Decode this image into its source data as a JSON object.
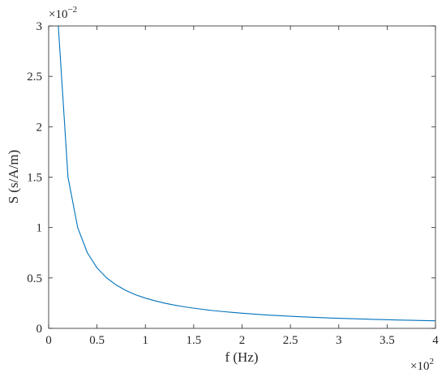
{
  "chart_data": {
    "type": "line",
    "title": "",
    "xlabel": "f (Hz)",
    "ylabel": "S (s/A/m)",
    "x_exponent_label": {
      "base": "×10",
      "power": "2"
    },
    "y_exponent_label": {
      "base": "×10",
      "power": "−2"
    },
    "xlim": [
      0,
      4
    ],
    "ylim": [
      0,
      3
    ],
    "x_ticks": [
      0,
      0.5,
      1,
      1.5,
      2,
      2.5,
      3,
      3.5,
      4
    ],
    "x_tick_labels": [
      "0",
      "0.5",
      "1",
      "1.5",
      "2",
      "2.5",
      "3",
      "3.5",
      "4"
    ],
    "y_ticks": [
      0,
      0.5,
      1,
      1.5,
      2,
      2.5,
      3
    ],
    "y_tick_labels": [
      "0",
      "0.5",
      "1",
      "1.5",
      "2",
      "2.5",
      "3"
    ],
    "grid": false,
    "series": [
      {
        "color": "#0072BD",
        "x": [
          0.1,
          0.2,
          0.3,
          0.4,
          0.5,
          0.6,
          0.7,
          0.8,
          0.9,
          1.0,
          1.1,
          1.2,
          1.3,
          1.4,
          1.5,
          1.6,
          1.7,
          1.8,
          1.9,
          2.0,
          2.1,
          2.2,
          2.3,
          2.4,
          2.5,
          2.6,
          2.7,
          2.8,
          2.9,
          3.0,
          3.1,
          3.2,
          3.3,
          3.4,
          3.5,
          3.6,
          3.7,
          3.8,
          3.9,
          4.0
        ],
        "y": [
          3.0,
          1.5,
          1.0,
          0.75,
          0.6,
          0.5,
          0.429,
          0.375,
          0.333,
          0.3,
          0.273,
          0.25,
          0.231,
          0.214,
          0.2,
          0.188,
          0.176,
          0.167,
          0.158,
          0.15,
          0.143,
          0.136,
          0.13,
          0.125,
          0.12,
          0.115,
          0.111,
          0.107,
          0.103,
          0.1,
          0.097,
          0.094,
          0.091,
          0.088,
          0.086,
          0.083,
          0.081,
          0.079,
          0.077,
          0.075
        ]
      }
    ]
  }
}
